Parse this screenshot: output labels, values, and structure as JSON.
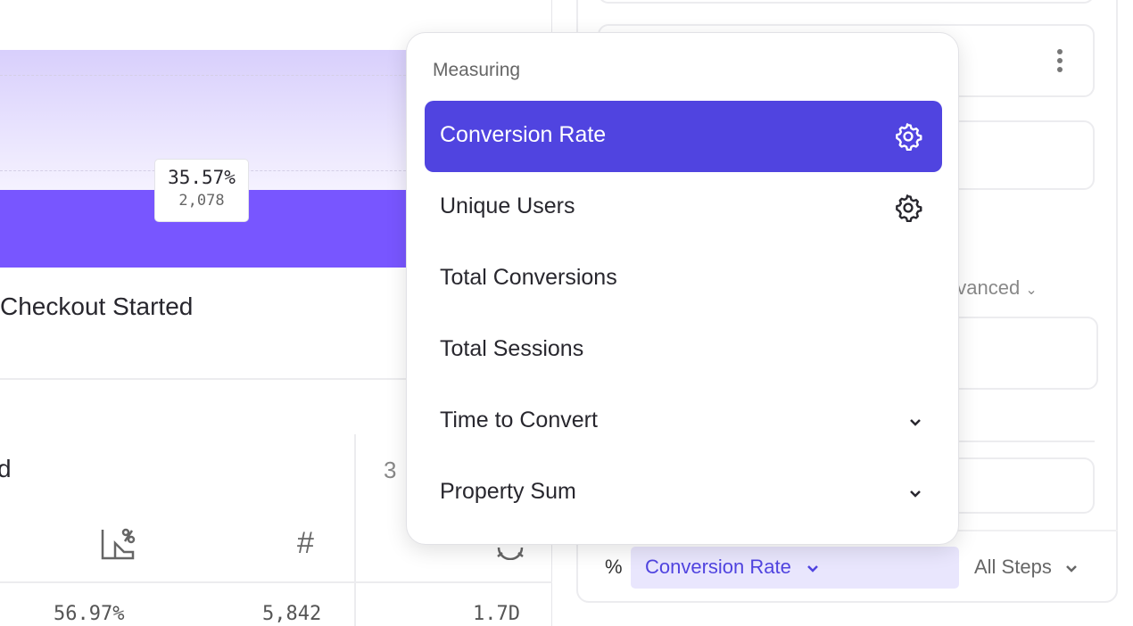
{
  "chart": {
    "tooltip_value": "35.57%",
    "tooltip_count": "2,078",
    "conversion_rate_pct": 35.57,
    "step_name": "Checkout Started"
  },
  "table": {
    "header_partial": "d",
    "next_col_header": "3",
    "values": [
      "56.97%",
      "5,842",
      "1.7D"
    ]
  },
  "right": {
    "advanced_label": "dvanced",
    "percent_symbol": "%",
    "measure_value": "Conversion Rate",
    "steps_value": "All Steps"
  },
  "menu": {
    "title": "Measuring",
    "items": [
      {
        "label": "Conversion Rate",
        "icon": "gear-icon",
        "selected": true
      },
      {
        "label": "Unique Users",
        "icon": "gear-icon"
      },
      {
        "label": "Total Conversions"
      },
      {
        "label": "Total Sessions"
      },
      {
        "label": "Time to Convert",
        "icon": "chevron-down-icon"
      },
      {
        "label": "Property Sum",
        "icon": "chevron-down-icon"
      }
    ]
  },
  "colors": {
    "accent": "#5044E0",
    "bar": "#7856FF",
    "pill_bg": "#E9E6FD"
  }
}
